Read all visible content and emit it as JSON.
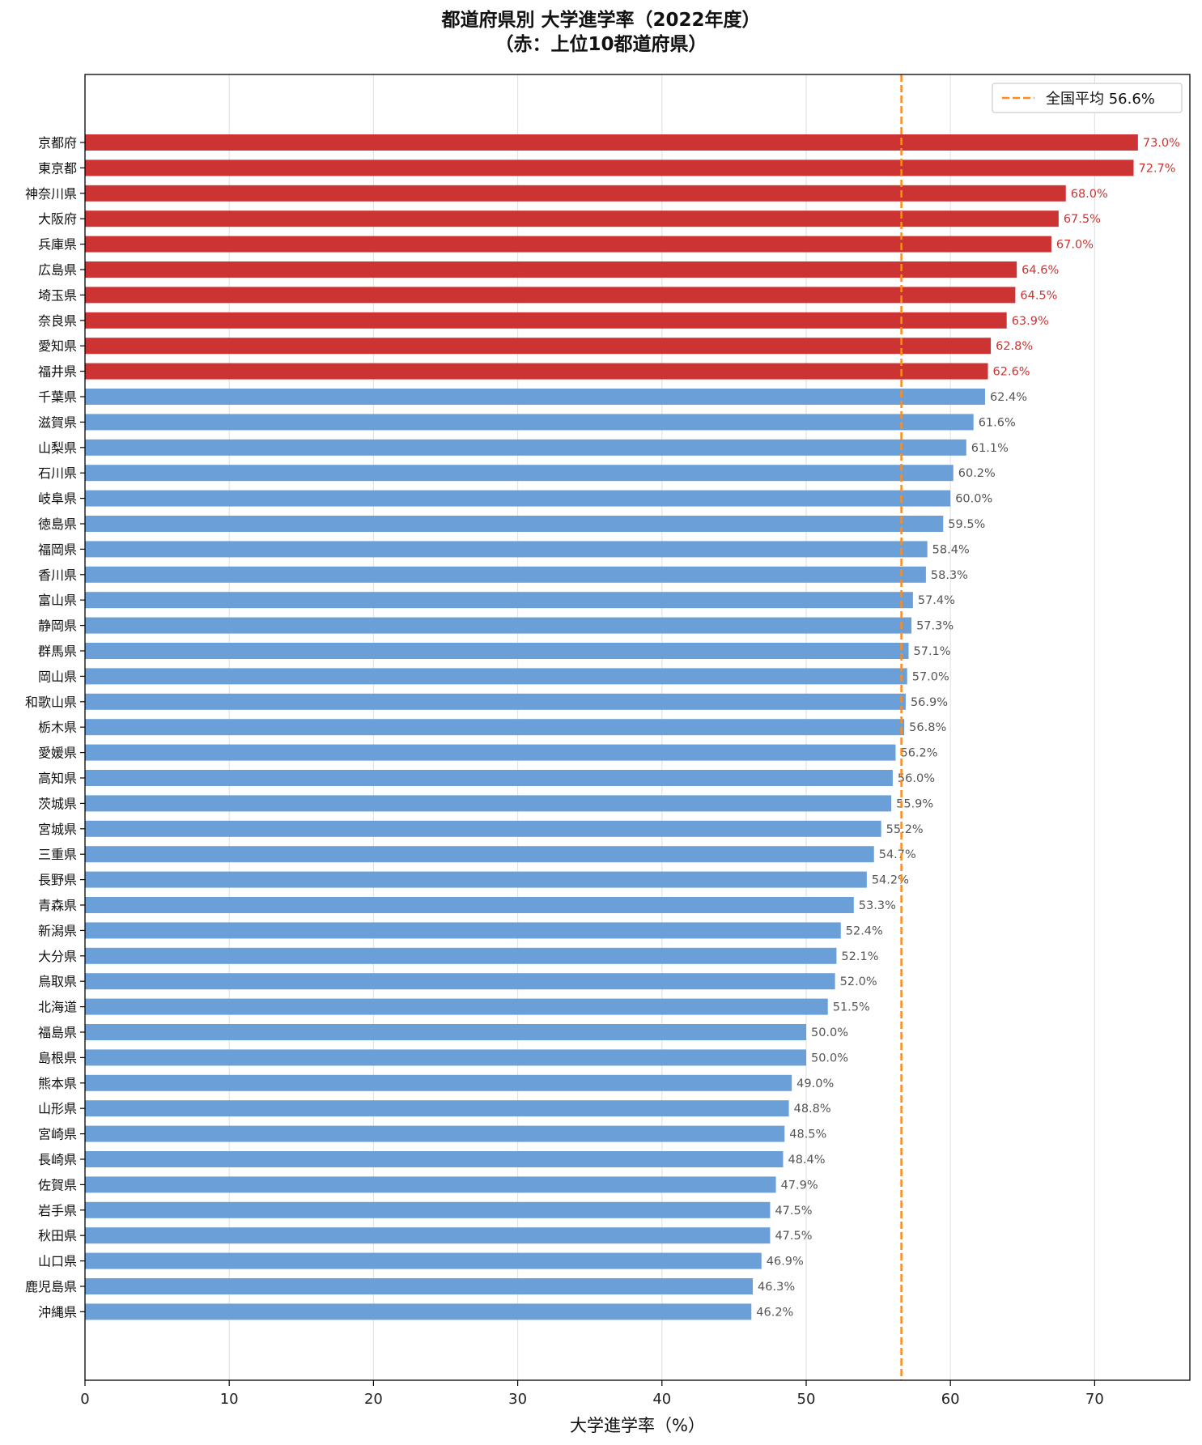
{
  "chart_data": {
    "type": "bar",
    "orientation": "horizontal",
    "title_line1": "都道府県別 大学進学率（2022年度）",
    "title_line2": "（赤：上位10都道府県）",
    "xlabel": "大学進学率（%）",
    "ylabel": "",
    "xlim": [
      0,
      76.6
    ],
    "xticks": [
      0,
      10,
      20,
      30,
      40,
      50,
      60,
      70
    ],
    "grid": "vertical",
    "legend_position": "top-right",
    "reference_line": {
      "label": "全国平均 56.6%",
      "value": 56.6,
      "color": "#ff8c1a"
    },
    "colors": {
      "highlight": "#cc3333",
      "normal": "#6a9fd8",
      "highlight_text": "#cc3333",
      "normal_text": "#555555"
    },
    "highlight_count": 10,
    "categories": [
      "京都府",
      "東京都",
      "神奈川県",
      "大阪府",
      "兵庫県",
      "広島県",
      "埼玉県",
      "奈良県",
      "愛知県",
      "福井県",
      "千葉県",
      "滋賀県",
      "山梨県",
      "石川県",
      "岐阜県",
      "徳島県",
      "福岡県",
      "香川県",
      "富山県",
      "静岡県",
      "群馬県",
      "岡山県",
      "和歌山県",
      "栃木県",
      "愛媛県",
      "高知県",
      "茨城県",
      "宮城県",
      "三重県",
      "長野県",
      "青森県",
      "新潟県",
      "大分県",
      "鳥取県",
      "北海道",
      "福島県",
      "島根県",
      "熊本県",
      "山形県",
      "宮崎県",
      "長崎県",
      "佐賀県",
      "岩手県",
      "秋田県",
      "山口県",
      "鹿児島県",
      "沖縄県"
    ],
    "values": [
      73.0,
      72.7,
      68.0,
      67.5,
      67.0,
      64.6,
      64.5,
      63.9,
      62.8,
      62.6,
      62.4,
      61.6,
      61.1,
      60.2,
      60.0,
      59.5,
      58.4,
      58.3,
      57.4,
      57.3,
      57.1,
      57.0,
      56.9,
      56.8,
      56.2,
      56.0,
      55.9,
      55.2,
      54.7,
      54.2,
      53.3,
      52.4,
      52.1,
      52.0,
      51.5,
      50.0,
      50.0,
      49.0,
      48.8,
      48.5,
      48.4,
      47.9,
      47.5,
      47.5,
      46.9,
      46.3,
      46.2
    ],
    "value_labels": [
      "73.0%",
      "72.7%",
      "68.0%",
      "67.5%",
      "67.0%",
      "64.6%",
      "64.5%",
      "63.9%",
      "62.8%",
      "62.6%",
      "62.4%",
      "61.6%",
      "61.1%",
      "60.2%",
      "60.0%",
      "59.5%",
      "58.4%",
      "58.3%",
      "57.4%",
      "57.3%",
      "57.1%",
      "57.0%",
      "56.9%",
      "56.8%",
      "56.2%",
      "56.0%",
      "55.9%",
      "55.2%",
      "54.7%",
      "54.2%",
      "53.3%",
      "52.4%",
      "52.1%",
      "52.0%",
      "51.5%",
      "50.0%",
      "50.0%",
      "49.0%",
      "48.8%",
      "48.5%",
      "48.4%",
      "47.9%",
      "47.5%",
      "47.5%",
      "46.9%",
      "46.3%",
      "46.2%"
    ]
  }
}
